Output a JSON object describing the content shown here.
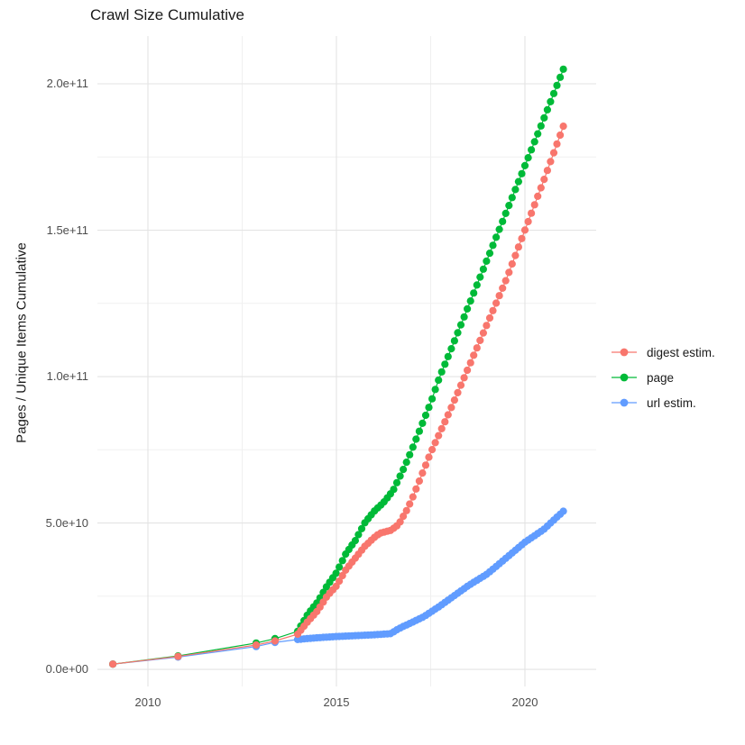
{
  "chart_data": {
    "type": "line",
    "title": "Crawl Size Cumulative",
    "xlabel": "",
    "ylabel": "Pages / Unique Items Cumulative",
    "grid": true,
    "legend_position": "right",
    "x_axis": {
      "tick_labels": [
        "2010",
        "2015",
        "2020"
      ],
      "tick_values": [
        2010,
        2015,
        2020
      ],
      "minor_ticks": [
        2012.5,
        2017.5
      ],
      "range": [
        2008.66,
        2021.89
      ]
    },
    "y_axis": {
      "tick_labels": [
        "0.0e+00",
        "5.0e+10",
        "1.0e+11",
        "1.5e+11",
        "2.0e+11"
      ],
      "tick_values": [
        0,
        50000000000.0,
        100000000000.0,
        150000000000.0,
        200000000000.0
      ],
      "minor_ticks": [
        25000000000.0,
        75000000000.0,
        125000000000.0,
        175000000000.0
      ],
      "range": [
        -5840000000.0,
        216310000000.0
      ]
    },
    "sample_years": {
      "sparse": [
        2009.07,
        2010.8,
        2012.87,
        2013.37
      ],
      "dense_start": 2013.97,
      "dense_end": 2021.02,
      "dense_n": 84
    },
    "series": [
      {
        "name": "digest estim.",
        "color": "#F8766D",
        "anchors": [
          [
            2009.07,
            1800000000.0
          ],
          [
            2010.8,
            4400000000.0
          ],
          [
            2012.87,
            8300000000.0
          ],
          [
            2013.37,
            9700000000.0
          ],
          [
            2013.97,
            12000000000.0
          ],
          [
            2014.25,
            16500000000.0
          ],
          [
            2014.5,
            20000000000.0
          ],
          [
            2014.75,
            25000000000.0
          ],
          [
            2015.0,
            28500000000.0
          ],
          [
            2015.25,
            34000000000.0
          ],
          [
            2015.5,
            38000000000.0
          ],
          [
            2015.75,
            42000000000.0
          ],
          [
            2016.0,
            45000000000.0
          ],
          [
            2016.15,
            46500000000.0
          ],
          [
            2016.45,
            47500000000.0
          ],
          [
            2016.65,
            49500000000.0
          ],
          [
            2016.85,
            54000000000.0
          ],
          [
            2017.0,
            58000000000.0
          ],
          [
            2017.25,
            66000000000.0
          ],
          [
            2017.5,
            74000000000.0
          ],
          [
            2018.0,
            88000000000.0
          ],
          [
            2018.4,
            100000000000.0
          ],
          [
            2019.0,
            118000000000.0
          ],
          [
            2019.5,
            133000000000.0
          ],
          [
            2020.0,
            150000000000.0
          ],
          [
            2020.5,
            167000000000.0
          ],
          [
            2021.02,
            185500000000.0
          ]
        ]
      },
      {
        "name": "page",
        "color": "#00BA38",
        "anchors": [
          [
            2009.07,
            1800000000.0
          ],
          [
            2010.8,
            4600000000.0
          ],
          [
            2012.87,
            9000000000.0
          ],
          [
            2013.37,
            10500000000.0
          ],
          [
            2013.97,
            13000000000.0
          ],
          [
            2014.25,
            19000000000.0
          ],
          [
            2014.5,
            23000000000.0
          ],
          [
            2014.75,
            28500000000.0
          ],
          [
            2015.0,
            33000000000.0
          ],
          [
            2015.25,
            39500000000.0
          ],
          [
            2015.5,
            44000000000.0
          ],
          [
            2015.75,
            50000000000.0
          ],
          [
            2016.0,
            54000000000.0
          ],
          [
            2016.25,
            57000000000.0
          ],
          [
            2016.5,
            61000000000.0
          ],
          [
            2016.8,
            69000000000.0
          ],
          [
            2017.0,
            75000000000.0
          ],
          [
            2017.5,
            91000000000.0
          ],
          [
            2017.74,
            100000000000.0
          ],
          [
            2018.0,
            108000000000.0
          ],
          [
            2018.5,
            124000000000.0
          ],
          [
            2019.0,
            140000000000.0
          ],
          [
            2019.5,
            156000000000.0
          ],
          [
            2020.0,
            172000000000.0
          ],
          [
            2020.5,
            188000000000.0
          ],
          [
            2021.02,
            205000000000.0
          ]
        ]
      },
      {
        "name": "url estim.",
        "color": "#619CFF",
        "anchors": [
          [
            2009.07,
            1800000000.0
          ],
          [
            2010.8,
            4200000000.0
          ],
          [
            2012.87,
            7800000000.0
          ],
          [
            2013.37,
            9200000000.0
          ],
          [
            2013.97,
            10200000000.0
          ],
          [
            2014.5,
            10800000000.0
          ],
          [
            2015.0,
            11200000000.0
          ],
          [
            2015.5,
            11500000000.0
          ],
          [
            2016.0,
            11800000000.0
          ],
          [
            2016.45,
            12200000000.0
          ],
          [
            2016.6,
            13500000000.0
          ],
          [
            2016.75,
            14500000000.0
          ],
          [
            2017.0,
            16000000000.0
          ],
          [
            2017.32,
            18000000000.0
          ],
          [
            2017.73,
            21500000000.0
          ],
          [
            2018.0,
            24000000000.0
          ],
          [
            2018.5,
            28600000000.0
          ],
          [
            2019.0,
            32600000000.0
          ],
          [
            2019.5,
            38000000000.0
          ],
          [
            2020.0,
            43400000000.0
          ],
          [
            2020.5,
            47800000000.0
          ],
          [
            2020.85,
            52000000000.0
          ],
          [
            2021.02,
            54000000000.0
          ]
        ]
      }
    ],
    "draw_order": [
      2,
      1,
      0
    ],
    "colors": {
      "major_grid": "#e3e3e3",
      "minor_grid": "#f0f0f0",
      "tick_text": "#4d4d4d",
      "text": "#1a1a1a",
      "background": "#ffffff"
    }
  }
}
